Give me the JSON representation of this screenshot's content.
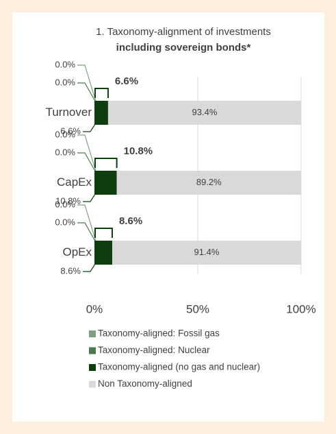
{
  "chart_data": {
    "type": "stacked_bar_horizontal",
    "title": "1. Taxonomy-alignment of investments",
    "subtitle": "including sovereign bonds*",
    "categories": [
      "Turnover",
      "CapEx",
      "OpEx"
    ],
    "series": [
      {
        "name": "Taxonomy-aligned: Fossil gas",
        "color": "#7f9f82",
        "values": [
          0.0,
          0.0,
          0.0
        ],
        "value_labels": [
          "0.0%",
          "0.0%",
          "0.0%"
        ]
      },
      {
        "name": "Taxonomy-aligned: Nuclear",
        "color": "#4b7a4f",
        "values": [
          0.0,
          0.0,
          0.0
        ],
        "value_labels": [
          "0.0%",
          "0.0%",
          "0.0%"
        ]
      },
      {
        "name": "Taxonomy-aligned (no gas and nuclear)",
        "color": "#0e3d10",
        "values": [
          6.6,
          10.8,
          8.6
        ],
        "value_labels": [
          "6.6%",
          "10.8%",
          "8.6%"
        ]
      },
      {
        "name": "Non Taxonomy-aligned",
        "color": "#d9d9d9",
        "values": [
          93.4,
          89.2,
          91.4
        ],
        "value_labels": [
          "93.4%",
          "89.2%",
          "91.4%"
        ]
      }
    ],
    "aligned_totals": {
      "values": [
        6.6,
        10.8,
        8.6
      ],
      "value_labels": [
        "6.6%",
        "10.8%",
        "8.6%"
      ],
      "color": "#1e5a1e"
    },
    "xlim": [
      0,
      100
    ],
    "xticks": [
      {
        "value": 0,
        "label": "0%"
      },
      {
        "value": 50,
        "label": "50%"
      },
      {
        "value": 100,
        "label": "100%"
      }
    ],
    "grid": true
  }
}
